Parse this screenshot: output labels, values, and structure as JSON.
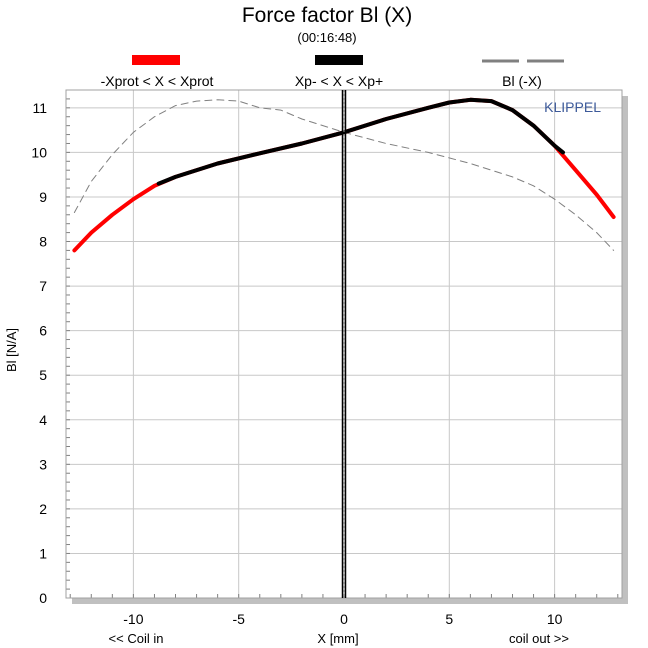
{
  "chart_data": {
    "type": "line",
    "title": "Force factor Bl (X)",
    "subtitle": "(00:16:48)",
    "xlabel": "X [mm]",
    "ylabel": "Bl [N/A]",
    "x_left_note": "<< Coil in",
    "x_right_note": "coil out >>",
    "watermark": "KLIPPEL",
    "xlim": [
      -13.2,
      13.2
    ],
    "ylim": [
      0,
      11.4
    ],
    "x_ticks": [
      -10,
      -5,
      0,
      5,
      10
    ],
    "y_ticks": [
      0,
      1,
      2,
      3,
      4,
      5,
      6,
      7,
      8,
      9,
      10,
      11
    ],
    "grid": true,
    "legend": [
      {
        "label": "-Xprot < X < Xprot",
        "color": "#ff0000",
        "style": "solid"
      },
      {
        "label": "Xp- < X < Xp+",
        "color": "#000000",
        "style": "solid"
      },
      {
        "label": "Bl (-X)",
        "color": "#808080",
        "style": "dashed"
      }
    ],
    "series": [
      {
        "name": "-Xprot < X < Xprot",
        "color": "#ff0000",
        "x": [
          -12.8,
          -12,
          -11,
          -10,
          -9,
          -8,
          -6,
          -4,
          -2,
          0,
          2,
          4,
          5,
          6,
          7,
          8,
          9,
          10,
          11,
          12,
          12.8
        ],
        "y": [
          7.8,
          8.2,
          8.6,
          8.95,
          9.25,
          9.45,
          9.75,
          9.98,
          10.2,
          10.45,
          10.75,
          11.0,
          11.12,
          11.18,
          11.15,
          10.95,
          10.6,
          10.15,
          9.6,
          9.05,
          8.55
        ]
      },
      {
        "name": "Xp- < X < Xp+",
        "color": "#000000",
        "x": [
          -8.8,
          -8,
          -6,
          -4,
          -2,
          0,
          2,
          4,
          5,
          6,
          7,
          8,
          9,
          10,
          10.4
        ],
        "y": [
          9.3,
          9.45,
          9.75,
          9.98,
          10.2,
          10.45,
          10.75,
          11.0,
          11.12,
          11.18,
          11.15,
          10.95,
          10.6,
          10.15,
          10.0
        ]
      },
      {
        "name": "Bl (-X)",
        "color": "#808080",
        "x": [
          -12.8,
          -12,
          -11,
          -10,
          -9,
          -8,
          -7,
          -6,
          -5,
          -4,
          -3,
          -2,
          0,
          2,
          4,
          6,
          8,
          9,
          10,
          11,
          12,
          12.8
        ],
        "y": [
          8.65,
          9.35,
          9.95,
          10.45,
          10.8,
          11.05,
          11.15,
          11.18,
          11.15,
          11.0,
          10.95,
          10.75,
          10.45,
          10.2,
          10.0,
          9.75,
          9.45,
          9.25,
          8.95,
          8.6,
          8.2,
          7.8
        ]
      }
    ],
    "marker_line": {
      "x": 0,
      "color": "#000000",
      "style": "solid"
    }
  }
}
